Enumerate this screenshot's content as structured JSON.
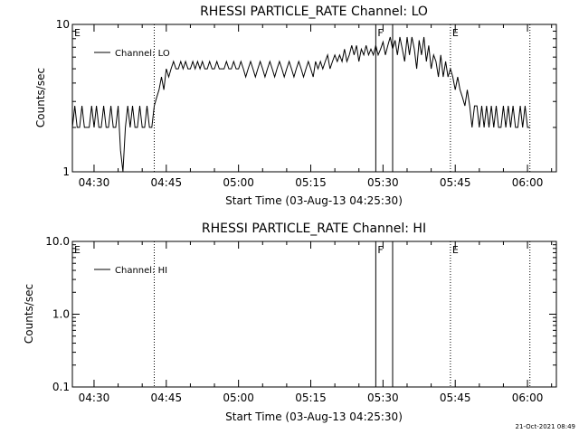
{
  "footer": {
    "timestamp": "21-Oct-2021 08:49"
  },
  "chart_data": [
    {
      "type": "line",
      "title": "RHESSI PARTICLE_RATE Channel: LO",
      "xlabel": "Start Time (03-Aug-13 04:25:30)",
      "ylabel": "Counts/sec",
      "yscale": "log",
      "ylim": [
        1,
        10
      ],
      "y_ticks": [
        "10",
        "1"
      ],
      "y_tick_values": [
        10,
        1
      ],
      "xlim": [
        "04:25:30",
        "06:06"
      ],
      "x_ticks": [
        "04:30",
        "04:45",
        "05:00",
        "05:15",
        "05:30",
        "05:45",
        "06:00"
      ],
      "legend": {
        "position": "top-left",
        "entries": [
          "Channel: LO"
        ]
      },
      "markers": [
        {
          "label": "E",
          "time": "04:25:30",
          "style": "none"
        },
        {
          "label": "",
          "time": "04:42:30",
          "style": "dotted"
        },
        {
          "label": "F",
          "time": "05:28:30",
          "style": "solid"
        },
        {
          "label": "",
          "time": "05:32:00",
          "style": "solid"
        },
        {
          "label": "E",
          "time": "05:44:00",
          "style": "dotted"
        },
        {
          "label": "",
          "time": "06:00:30",
          "style": "dotted"
        }
      ],
      "series": [
        {
          "values": [
            [
              "04:25:30",
              2
            ],
            [
              "04:26:00",
              2.8
            ],
            [
              "04:26:30",
              2
            ],
            [
              "04:27:00",
              2
            ],
            [
              "04:27:30",
              2.8
            ],
            [
              "04:28:00",
              2
            ],
            [
              "04:28:30",
              2
            ],
            [
              "04:29:00",
              2
            ],
            [
              "04:29:30",
              2.8
            ],
            [
              "04:30:00",
              2
            ],
            [
              "04:30:30",
              2.8
            ],
            [
              "04:31:00",
              2
            ],
            [
              "04:31:30",
              2
            ],
            [
              "04:32:00",
              2.8
            ],
            [
              "04:32:30",
              2
            ],
            [
              "04:33:00",
              2
            ],
            [
              "04:33:30",
              2.8
            ],
            [
              "04:34:00",
              2
            ],
            [
              "04:34:30",
              2
            ],
            [
              "04:35:00",
              2.8
            ],
            [
              "04:35:30",
              1.4
            ],
            [
              "04:36:00",
              1
            ],
            [
              "04:36:30",
              2
            ],
            [
              "04:37:00",
              2.8
            ],
            [
              "04:37:30",
              2
            ],
            [
              "04:38:00",
              2.8
            ],
            [
              "04:38:30",
              2
            ],
            [
              "04:39:00",
              2
            ],
            [
              "04:39:30",
              2.8
            ],
            [
              "04:40:00",
              2
            ],
            [
              "04:40:30",
              2
            ],
            [
              "04:41:00",
              2.8
            ],
            [
              "04:41:30",
              2
            ],
            [
              "04:42:00",
              2
            ],
            [
              "04:42:30",
              2.8
            ],
            [
              "04:43:00",
              3.2
            ],
            [
              "04:43:30",
              3.6
            ],
            [
              "04:44:00",
              4.4
            ],
            [
              "04:44:30",
              3.6
            ],
            [
              "04:45:00",
              5
            ],
            [
              "04:45:30",
              4.4
            ],
            [
              "04:46:00",
              5
            ],
            [
              "04:46:30",
              5.6
            ],
            [
              "04:47:00",
              5
            ],
            [
              "04:47:30",
              5
            ],
            [
              "04:48:00",
              5.6
            ],
            [
              "04:48:30",
              5
            ],
            [
              "04:49:00",
              5.6
            ],
            [
              "04:49:30",
              5
            ],
            [
              "04:50:00",
              5
            ],
            [
              "04:50:30",
              5.6
            ],
            [
              "04:51:00",
              5
            ],
            [
              "04:51:30",
              5.6
            ],
            [
              "04:52:00",
              5
            ],
            [
              "04:52:30",
              5.6
            ],
            [
              "04:53:00",
              5
            ],
            [
              "04:53:30",
              5
            ],
            [
              "04:54:00",
              5.6
            ],
            [
              "04:54:30",
              5
            ],
            [
              "04:55:00",
              5
            ],
            [
              "04:55:30",
              5.6
            ],
            [
              "04:56:00",
              5
            ],
            [
              "04:56:30",
              5
            ],
            [
              "04:57:00",
              5
            ],
            [
              "04:57:30",
              5.6
            ],
            [
              "04:58:00",
              5
            ],
            [
              "04:58:30",
              5
            ],
            [
              "04:59:00",
              5.6
            ],
            [
              "04:59:30",
              5
            ],
            [
              "05:00:00",
              5
            ],
            [
              "05:00:30",
              5.6
            ],
            [
              "05:01:00",
              5
            ],
            [
              "05:01:30",
              4.4
            ],
            [
              "05:02:00",
              5
            ],
            [
              "05:02:30",
              5.6
            ],
            [
              "05:03:00",
              5
            ],
            [
              "05:03:30",
              4.4
            ],
            [
              "05:04:00",
              5
            ],
            [
              "05:04:30",
              5.6
            ],
            [
              "05:05:00",
              5
            ],
            [
              "05:05:30",
              4.4
            ],
            [
              "05:06:00",
              5
            ],
            [
              "05:06:30",
              5.6
            ],
            [
              "05:07:00",
              5
            ],
            [
              "05:07:30",
              4.4
            ],
            [
              "05:08:00",
              5
            ],
            [
              "05:08:30",
              5.6
            ],
            [
              "05:09:00",
              5
            ],
            [
              "05:09:30",
              4.4
            ],
            [
              "05:10:00",
              5
            ],
            [
              "05:10:30",
              5.6
            ],
            [
              "05:11:00",
              5
            ],
            [
              "05:11:30",
              4.4
            ],
            [
              "05:12:00",
              5
            ],
            [
              "05:12:30",
              5.6
            ],
            [
              "05:13:00",
              5
            ],
            [
              "05:13:30",
              4.4
            ],
            [
              "05:14:00",
              5
            ],
            [
              "05:14:30",
              5.6
            ],
            [
              "05:15:00",
              5
            ],
            [
              "05:15:30",
              4.4
            ],
            [
              "05:16:00",
              5.6
            ],
            [
              "05:16:30",
              5
            ],
            [
              "05:17:00",
              5.6
            ],
            [
              "05:17:30",
              5
            ],
            [
              "05:18:00",
              5.6
            ],
            [
              "05:18:30",
              6.2
            ],
            [
              "05:19:00",
              5
            ],
            [
              "05:19:30",
              5.6
            ],
            [
              "05:20:00",
              6.2
            ],
            [
              "05:20:30",
              5.6
            ],
            [
              "05:21:00",
              6.2
            ],
            [
              "05:21:30",
              5.6
            ],
            [
              "05:22:00",
              6.8
            ],
            [
              "05:22:30",
              5.6
            ],
            [
              "05:23:00",
              6.2
            ],
            [
              "05:23:30",
              7.2
            ],
            [
              "05:24:00",
              6.2
            ],
            [
              "05:24:30",
              7.2
            ],
            [
              "05:25:00",
              5.6
            ],
            [
              "05:25:30",
              6.8
            ],
            [
              "05:26:00",
              6.2
            ],
            [
              "05:26:30",
              7.2
            ],
            [
              "05:27:00",
              6.2
            ],
            [
              "05:27:30",
              6.8
            ],
            [
              "05:28:00",
              6.2
            ],
            [
              "05:28:30",
              7.2
            ],
            [
              "05:29:00",
              6.2
            ],
            [
              "05:29:30",
              6.8
            ],
            [
              "05:30:00",
              7.6
            ],
            [
              "05:30:30",
              6.2
            ],
            [
              "05:31:00",
              7.2
            ],
            [
              "05:31:30",
              8.2
            ],
            [
              "05:32:00",
              6.8
            ],
            [
              "05:32:30",
              7.8
            ],
            [
              "05:33:00",
              6.2
            ],
            [
              "05:33:30",
              8.2
            ],
            [
              "05:34:00",
              6.8
            ],
            [
              "05:34:30",
              5.6
            ],
            [
              "05:35:00",
              8.2
            ],
            [
              "05:35:30",
              6.2
            ],
            [
              "05:36:00",
              8.2
            ],
            [
              "05:36:30",
              6.8
            ],
            [
              "05:37:00",
              5
            ],
            [
              "05:37:30",
              7.8
            ],
            [
              "05:38:00",
              6.2
            ],
            [
              "05:38:30",
              8.2
            ],
            [
              "05:39:00",
              5.6
            ],
            [
              "05:39:30",
              7.2
            ],
            [
              "05:40:00",
              5
            ],
            [
              "05:40:30",
              6.2
            ],
            [
              "05:41:00",
              5.6
            ],
            [
              "05:41:30",
              4.4
            ],
            [
              "05:42:00",
              6.2
            ],
            [
              "05:42:30",
              4.4
            ],
            [
              "05:43:00",
              5.6
            ],
            [
              "05:43:30",
              4.4
            ],
            [
              "05:44:00",
              5
            ],
            [
              "05:44:30",
              4.4
            ],
            [
              "05:45:00",
              3.6
            ],
            [
              "05:45:30",
              4.4
            ],
            [
              "05:46:00",
              3.6
            ],
            [
              "05:46:30",
              3.2
            ],
            [
              "05:47:00",
              2.8
            ],
            [
              "05:47:30",
              3.6
            ],
            [
              "05:48:00",
              2.8
            ],
            [
              "05:48:30",
              2
            ],
            [
              "05:49:00",
              2.8
            ],
            [
              "05:49:30",
              2.8
            ],
            [
              "05:50:00",
              2
            ],
            [
              "05:50:30",
              2.8
            ],
            [
              "05:51:00",
              2
            ],
            [
              "05:51:30",
              2.8
            ],
            [
              "05:52:00",
              2
            ],
            [
              "05:52:30",
              2.8
            ],
            [
              "05:53:00",
              2
            ],
            [
              "05:53:30",
              2.8
            ],
            [
              "05:54:00",
              2
            ],
            [
              "05:54:30",
              2
            ],
            [
              "05:55:00",
              2.8
            ],
            [
              "05:55:30",
              2
            ],
            [
              "05:56:00",
              2.8
            ],
            [
              "05:56:30",
              2
            ],
            [
              "05:57:00",
              2.8
            ],
            [
              "05:57:30",
              2
            ],
            [
              "05:58:00",
              2
            ],
            [
              "05:58:30",
              2.8
            ],
            [
              "05:59:00",
              2
            ],
            [
              "05:59:30",
              2.8
            ],
            [
              "06:00:00",
              2
            ],
            [
              "06:00:30",
              2
            ]
          ]
        }
      ]
    },
    {
      "type": "line",
      "title": "RHESSI PARTICLE_RATE Channel: HI",
      "xlabel": "Start Time (03-Aug-13 04:25:30)",
      "ylabel": "Counts/sec",
      "yscale": "log",
      "ylim": [
        0.1,
        10
      ],
      "y_ticks": [
        "10.0",
        "1.0",
        "0.1"
      ],
      "y_tick_values": [
        10,
        1,
        0.1
      ],
      "xlim": [
        "04:25:30",
        "06:06"
      ],
      "x_ticks": [
        "04:30",
        "04:45",
        "05:00",
        "05:15",
        "05:30",
        "05:45",
        "06:00"
      ],
      "legend": {
        "position": "top-left",
        "entries": [
          "Channel: HI"
        ]
      },
      "markers": [
        {
          "label": "E",
          "time": "04:25:30",
          "style": "none"
        },
        {
          "label": "",
          "time": "04:42:30",
          "style": "dotted"
        },
        {
          "label": "F",
          "time": "05:28:30",
          "style": "solid"
        },
        {
          "label": "",
          "time": "05:32:00",
          "style": "solid"
        },
        {
          "label": "E",
          "time": "05:44:00",
          "style": "dotted"
        },
        {
          "label": "",
          "time": "06:00:30",
          "style": "dotted"
        }
      ],
      "series": []
    }
  ]
}
